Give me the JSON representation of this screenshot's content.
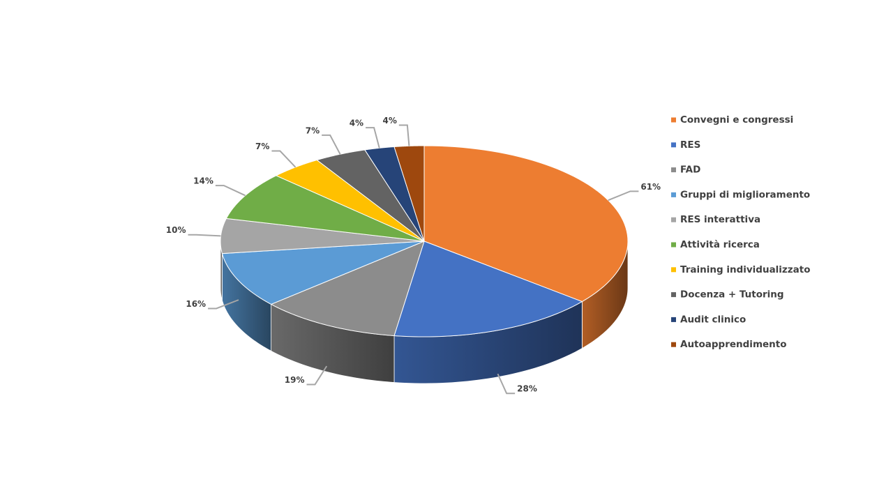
{
  "chart_data": {
    "type": "pie3d",
    "categories": [
      "Convegni e congressi",
      "RES",
      "FAD",
      "Gruppi di miglioramento",
      "RES interattiva",
      "Attività ricerca",
      "Training individualizzato",
      "Docenza + Tutoring",
      "Audit clinico",
      "Autoapprendimento"
    ],
    "values": [
      61,
      28,
      19,
      16,
      10,
      14,
      7,
      7,
      4,
      4
    ],
    "value_labels": [
      "61%",
      "28%",
      "19%",
      "16%",
      "10%",
      "14%",
      "7%",
      "7%",
      "4%",
      "4%"
    ],
    "colors": [
      "#ED7D31",
      "#4472C4",
      "#8C8C8C",
      "#5B9BD5",
      "#A5A5A5",
      "#70AD47",
      "#FFC000",
      "#636363",
      "#264478",
      "#9E480E"
    ],
    "legend": "right"
  }
}
